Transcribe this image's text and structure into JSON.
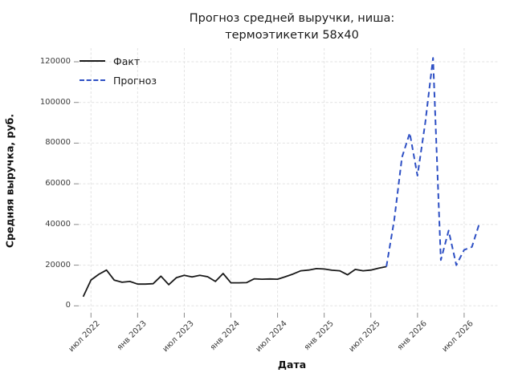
{
  "title": {
    "line1": "Прогноз средней выручки, ниша:",
    "line2": "термоэтикетки 58x40"
  },
  "x_axis_label": "Дата",
  "y_axis_label": "Средняя выручка, руб.",
  "legend": {
    "items": [
      {
        "label": "Факт",
        "line_style": "solid",
        "color": "#1a1a1a"
      },
      {
        "label": "Прогноз",
        "line_style": "dashed",
        "color": "#2d4fc4"
      }
    ]
  },
  "chart_data": {
    "type": "line",
    "title": "Прогноз средней выручки, ниша: термоэтикетки 58x40",
    "xlabel": "Дата",
    "ylabel": "Средняя выручка, руб.",
    "ylim": [
      0,
      126700
    ],
    "grid": true,
    "grid_style": "dashed-light-gray",
    "legend_position": "upper left",
    "y_ticks": [
      0,
      20000,
      40000,
      60000,
      80000,
      100000,
      120000
    ],
    "x_tick_labels": [
      "июл 2022",
      "янв 2023",
      "июл 2023",
      "янв 2024",
      "июл 2024",
      "янв 2025",
      "июл 2025",
      "янв 2026",
      "июл 2026"
    ],
    "x_tick_month_indices": [
      1,
      7,
      13,
      19,
      25,
      31,
      37,
      43,
      49
    ],
    "months": [
      "июн 2022",
      "июл 2022",
      "авг 2022",
      "сен 2022",
      "окт 2022",
      "ноя 2022",
      "дек 2022",
      "янв 2023",
      "фев 2023",
      "мар 2023",
      "апр 2023",
      "май 2023",
      "июн 2023",
      "июл 2023",
      "авг 2023",
      "сен 2023",
      "окт 2023",
      "ноя 2023",
      "дек 2023",
      "янв 2024",
      "фев 2024",
      "мар 2024",
      "апр 2024",
      "май 2024",
      "июн 2024",
      "июл 2024",
      "авг 2024",
      "сен 2024",
      "окт 2024",
      "ноя 2024",
      "дек 2024",
      "янв 2025",
      "фев 2025",
      "мар 2025",
      "апр 2025",
      "май 2025",
      "июн 2025",
      "июл 2025",
      "авг 2025",
      "сен 2025",
      "окт 2025",
      "ноя 2025",
      "дек 2025",
      "янв 2026",
      "фев 2026",
      "мар 2026",
      "апр 2026",
      "май 2026",
      "июн 2026",
      "июл 2026",
      "авг 2026",
      "сен 2026"
    ],
    "series": [
      {
        "name": "Факт",
        "line_style": "solid",
        "color": "#1a1a1a",
        "start_month_index": 0,
        "values": [
          4500,
          12700,
          15500,
          17600,
          12600,
          11600,
          12000,
          10700,
          10700,
          10900,
          14600,
          10400,
          13900,
          15000,
          14200,
          15000,
          14300,
          12000,
          15900,
          11300,
          11300,
          11400,
          13300,
          13100,
          13200,
          13100,
          14300,
          15650,
          17250,
          17600,
          18300,
          18100,
          17500,
          17250,
          15250,
          17900,
          17250,
          17600,
          18500,
          19300
        ]
      },
      {
        "name": "Прогноз",
        "line_style": "dashed",
        "color": "#2d4fc4",
        "start_month_index": 39,
        "values": [
          19300,
          42000,
          73000,
          85000,
          64000,
          90000,
          121900,
          22500,
          37000,
          20000,
          27500,
          29000,
          41000
        ]
      }
    ]
  }
}
